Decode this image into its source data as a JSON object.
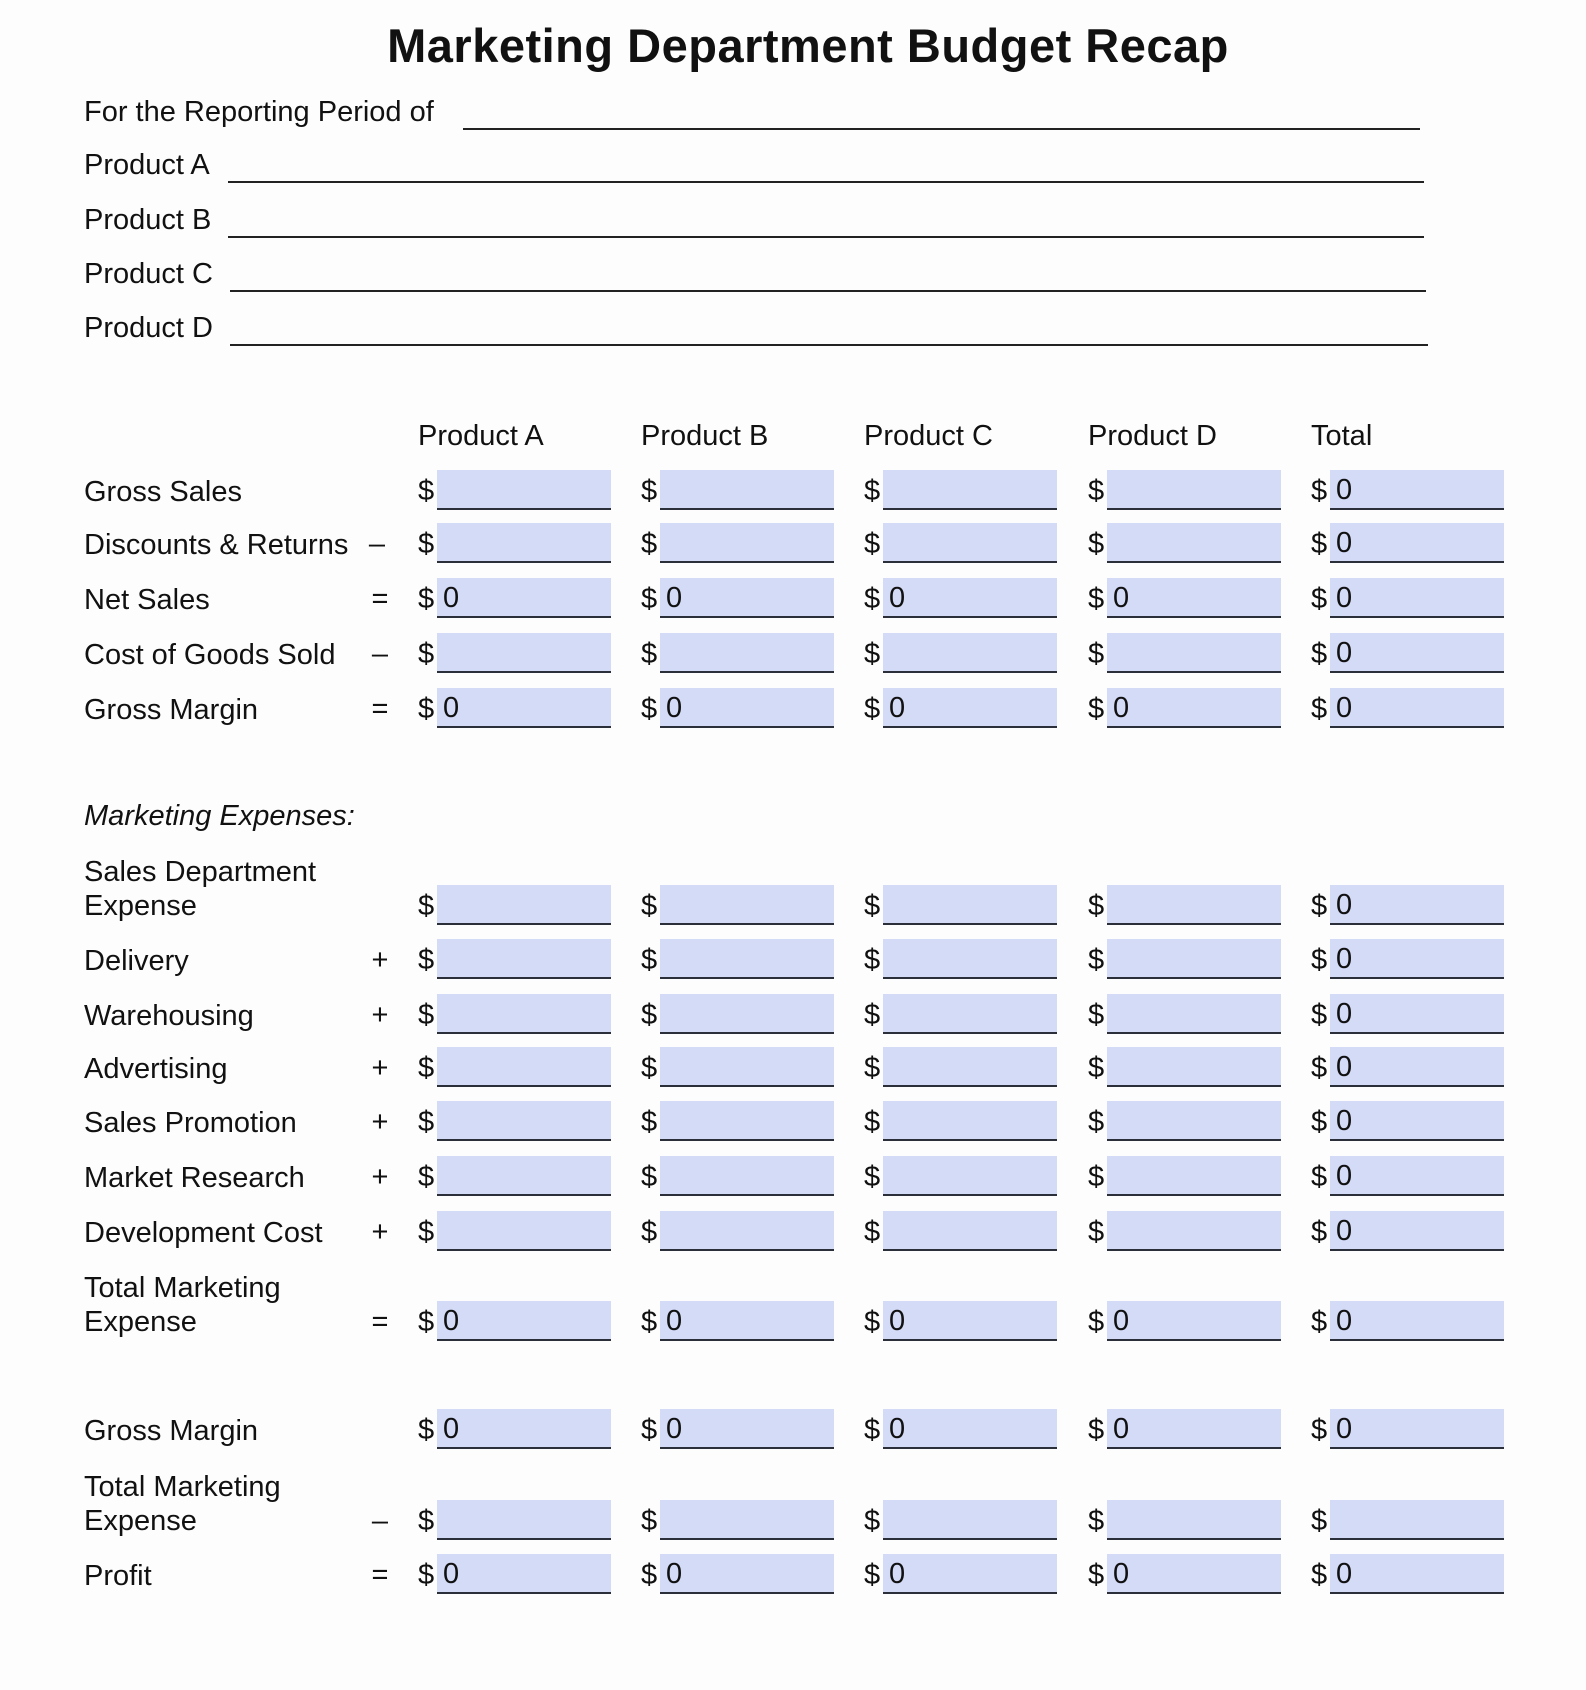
{
  "title": "Marketing Department Budget Recap",
  "header_fields": [
    {
      "label": "For the Reporting Period of",
      "value": ""
    },
    {
      "label": "Product A",
      "value": ""
    },
    {
      "label": "Product B",
      "value": ""
    },
    {
      "label": "Product C",
      "value": ""
    },
    {
      "label": "Product D",
      "value": ""
    }
  ],
  "columns": [
    "Product A",
    "Product B",
    "Product C",
    "Product D",
    "Total"
  ],
  "currency_symbol": "$",
  "section_label": "Marketing Expenses:",
  "rows": [
    {
      "label": "Gross Sales",
      "op": "",
      "values": [
        "",
        "",
        "",
        "",
        "0"
      ]
    },
    {
      "label": "Discounts & Returns",
      "op": "–",
      "values": [
        "",
        "",
        "",
        "",
        "0"
      ]
    },
    {
      "label": "Net Sales",
      "op": "=",
      "values": [
        "0",
        "0",
        "0",
        "0",
        "0"
      ]
    },
    {
      "label": "Cost of Goods Sold",
      "op": "–",
      "values": [
        "",
        "",
        "",
        "",
        "0"
      ]
    },
    {
      "label": "Gross Margin",
      "op": "=",
      "values": [
        "0",
        "0",
        "0",
        "0",
        "0"
      ]
    },
    {
      "label": "Sales Department Expense",
      "op": "",
      "values": [
        "",
        "",
        "",
        "",
        "0"
      ]
    },
    {
      "label": "Delivery",
      "op": "+",
      "values": [
        "",
        "",
        "",
        "",
        "0"
      ]
    },
    {
      "label": "Warehousing",
      "op": "+",
      "values": [
        "",
        "",
        "",
        "",
        "0"
      ]
    },
    {
      "label": "Advertising",
      "op": "+",
      "values": [
        "",
        "",
        "",
        "",
        "0"
      ]
    },
    {
      "label": "Sales Promotion",
      "op": "+",
      "values": [
        "",
        "",
        "",
        "",
        "0"
      ]
    },
    {
      "label": "Market Research",
      "op": "+",
      "values": [
        "",
        "",
        "",
        "",
        "0"
      ]
    },
    {
      "label": "Development Cost",
      "op": "+",
      "values": [
        "",
        "",
        "",
        "",
        "0"
      ]
    },
    {
      "label": "Total Marketing Expense",
      "op": "=",
      "values": [
        "0",
        "0",
        "0",
        "0",
        "0"
      ]
    },
    {
      "label": "Gross Margin",
      "op": "",
      "values": [
        "0",
        "0",
        "0",
        "0",
        "0"
      ]
    },
    {
      "label": "Total Marketing Expense",
      "op": "–",
      "values": [
        "",
        "",
        "",
        "",
        ""
      ]
    },
    {
      "label": "Profit",
      "op": "=",
      "values": [
        "0",
        "0",
        "0",
        "0",
        "0"
      ]
    }
  ],
  "colors": {
    "field_fill": "#d3dbf7",
    "underline": "#2a2f3a"
  }
}
